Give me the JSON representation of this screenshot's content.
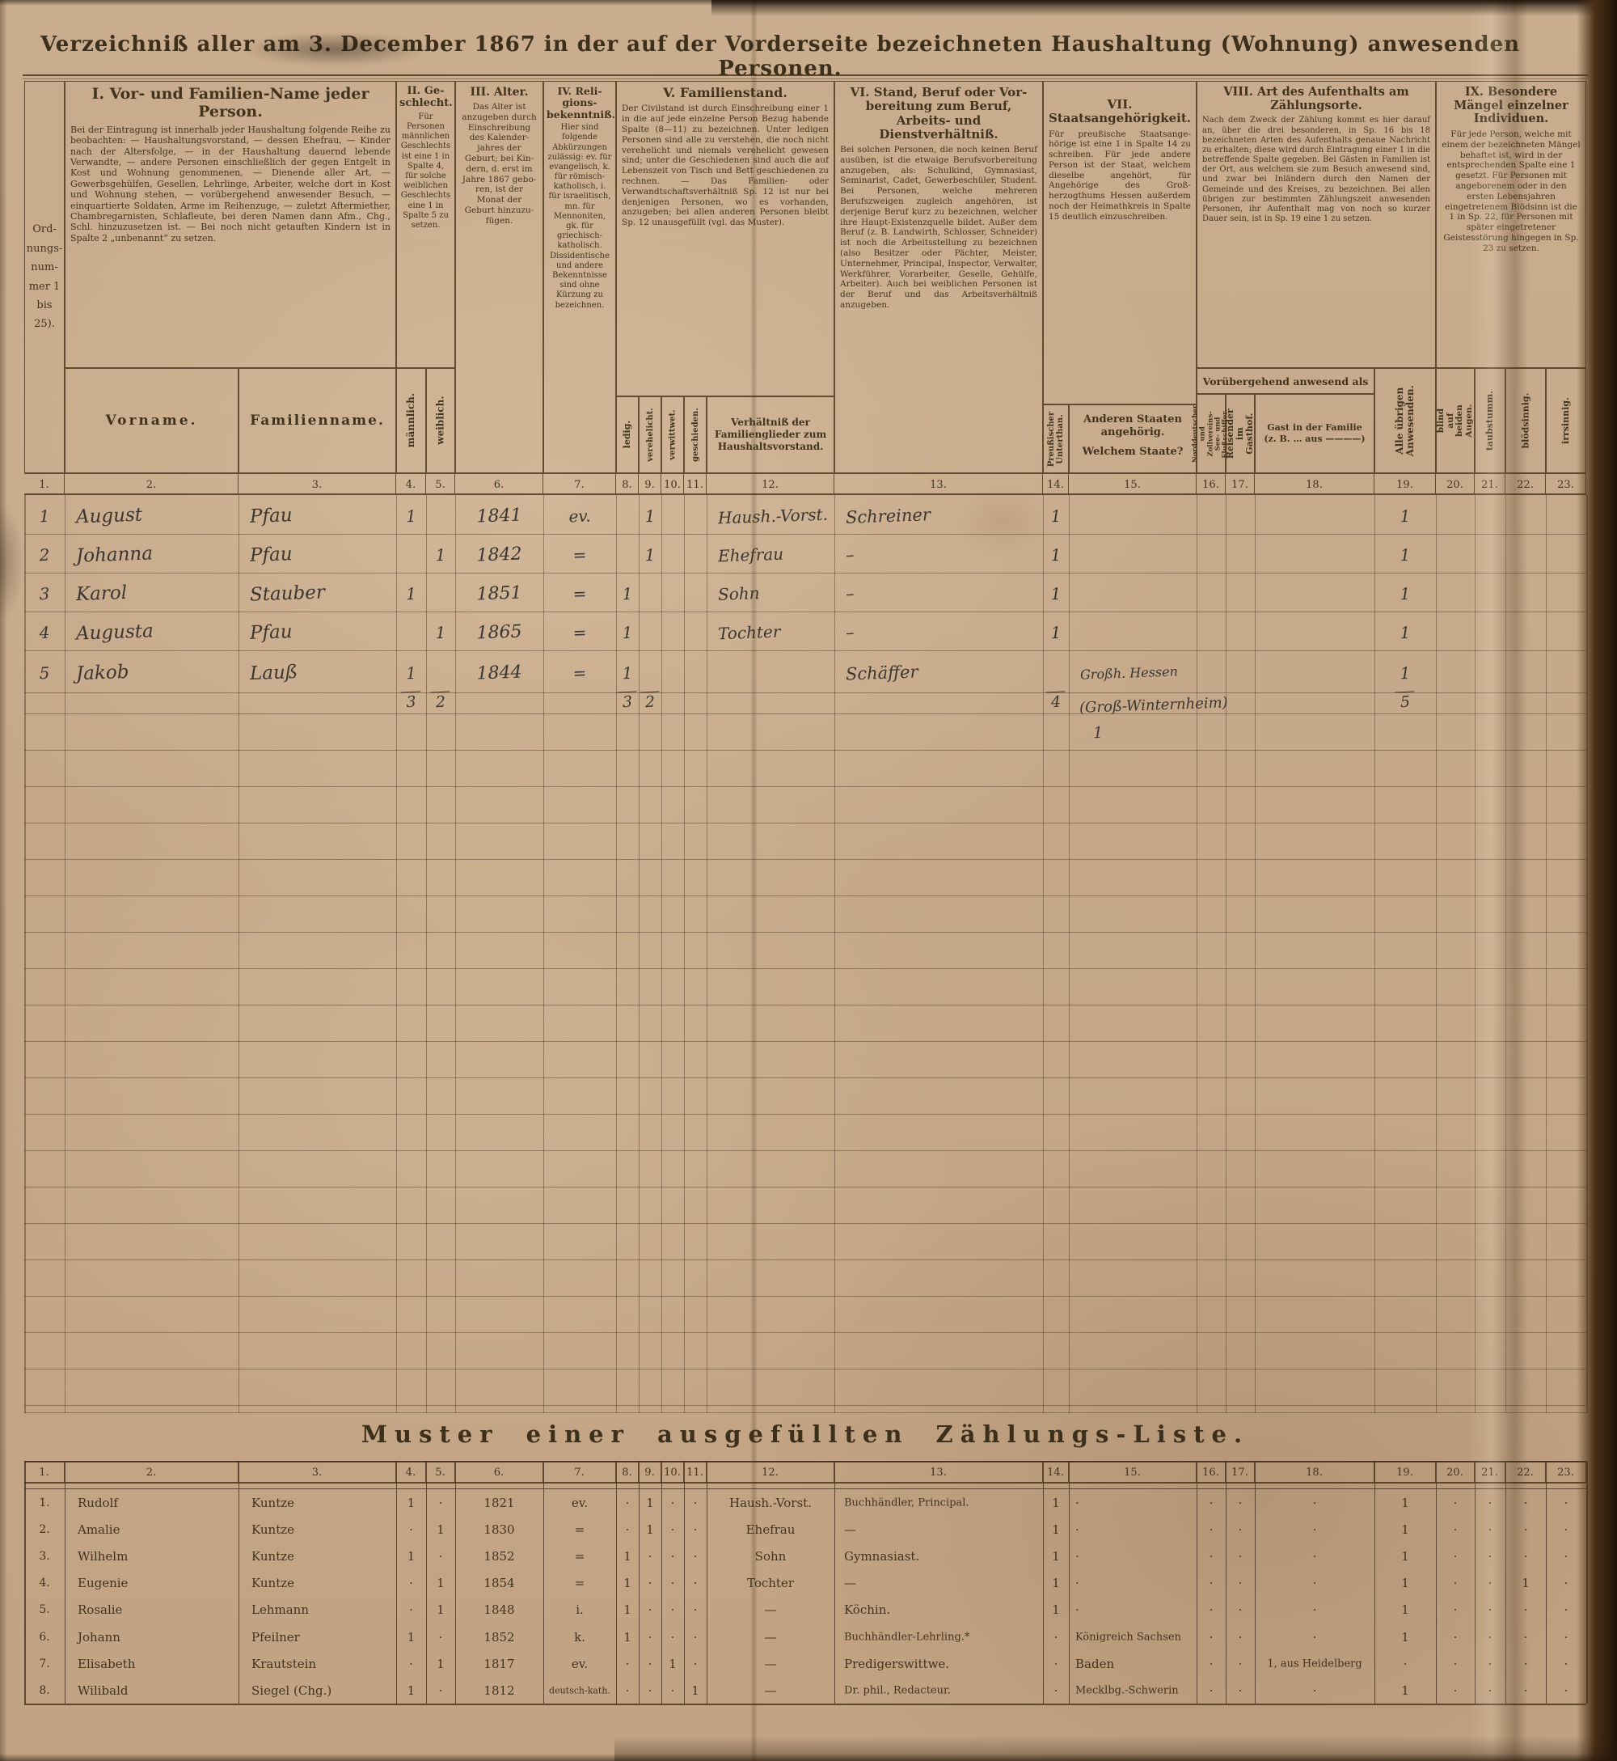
{
  "page": {
    "title": "Verzeichniß aller am 3. December 1867 in der auf der Vorderseite bezeichneten Haushaltung (Wohnung) anwesenden Personen."
  },
  "colors": {
    "paper": "#c9ad8e",
    "ink": "#42331e",
    "handwriting": "#3b3631",
    "book_edge": "#2a1a0c"
  },
  "table": {
    "ord_label": "Ord- nungs- num- mer 1 bis 25).",
    "groups": {
      "g1": {
        "title": "I. Vor- und Familien-Name jeder Person.",
        "text": "Bei der Eintragung ist innerhalb jeder Haushaltung folgende Reihe zu beobachten: — Haushaltungsvorstand, — dessen Ehefrau, — Kinder nach der Altersfolge, — in der Haushaltung dauernd lebende Verwandte, — andere Personen einschließlich der gegen Entgelt in Kost und Wohnung genommenen, — Dienende aller Art, — Gewerbsgehülfen, Gesellen, Lehrlinge, Arbeiter, welche dort in Kost und Wohnung stehen, — vorübergehend anwesender Besuch, — einquartierte Soldaten, Arme im Reihenzuge, — zuletzt Aftermiether, Chambregarnisten, Schlafleute, bei deren Namen dann Afm., Chg., Schl. hinzuzusetzen ist. — Bei noch nicht getauften Kindern ist in Spalte 2 „unbenannt“ zu setzen.",
        "sub_vorname": "Vorname.",
        "sub_familienname": "Familienname."
      },
      "g2": {
        "title": "II. Ge­schlecht.",
        "text": "Für Personen männ­lichen Geschlechts ist eine 1 in Spalte 4, für solche weiblichen Geschlechts eine 1 in Spalte 5 zu setzen.",
        "sub_maennlich": "männlich.",
        "sub_weiblich": "weiblich."
      },
      "g3": {
        "title": "III. Alter.",
        "text": "Das Alter ist anzugeben durch Einschrei­bung des Kalender­jahres der Geburt; bei Kin­dern, d. erst im Jahre 1867 gebo­ren, ist der Monat der Geburt hinzuzu­fügen."
      },
      "g4": {
        "title": "IV. Reli­gions­bekenntniß.",
        "text": "Hier sind folgende Abkürzungen zulässig: ev. für evangelisch, k. für römisch-katholisch, i. für israelitisch, mn. für Mennoniten, gk. für griechisch-katholisch. Dissidentische und andere Bekenntnisse sind ohne Kürzung zu bezeichnen."
      },
      "g5": {
        "title": "V. Familienstand.",
        "text": "Der Civilstand ist durch Einschreibung einer 1 in die auf jede einzelne Person Bezug habende Spalte (8—11) zu bezeichnen. Unter ledigen Personen sind alle zu verstehen, die noch nicht verehelicht und niemals verehelicht gewesen sind; unter die Geschiedenen sind auch die auf Lebenszeit von Tisch und Bett geschiedenen zu rechnen. — Das Familien- oder Verwandtschaftsverhältniß Sp. 12 ist nur bei denjenigen Personen, wo es vorhanden, anzugeben; bei allen anderen Personen bleibt Sp. 12 unausgefüllt (vgl. das Muster).",
        "sub_ledig": "ledig.",
        "sub_verehelicht": "verehelicht.",
        "sub_verwittwet": "verwittwet.",
        "sub_geschieden": "geschieden.",
        "sub_verhaeltnis": "Verhältniß der Familienglieder zum Haushalts­vorstand."
      },
      "g6": {
        "title": "VI. Stand, Beruf oder Vor­bereitung zum Beruf, Arbeits- und Dienstverhältniß.",
        "text": "Bei solchen Personen, die noch keinen Beruf ausüben, ist die etwaige Berufsvorbereitung anzugeben, als: Schulkind, Gymnasiast, Seminarist, Cadet, Gewerbeschüler, Student. Bei Personen, welche mehreren Berufszweigen zugleich angehören, ist derjenige Beruf kurz zu bezeichnen, welcher ihre Haupt-Existenzquelle bildet. Außer dem Beruf (z. B. Landwirth, Schlosser, Schneider) ist noch die Arbeitsstellung zu bezeichnen (also Besitzer oder Pächter, Meister, Unternehmer, Principal, Inspector, Verwalter, Werkführer, Vorarbeiter, Geselle, Gehülfe, Arbeiter). Auch bei weiblichen Personen ist der Beruf und das Arbeitsverhältniß anzugeben."
      },
      "g7": {
        "title": "VII. Staatsangehörigkeit.",
        "text": "Für preußische Staatsange­hörige ist eine 1 in Spalte 14 zu schreiben. Für jede andere Person ist der Staat, welchem dieselbe angehört, für Angehörige des Groß­herzogthums Hessen außerdem noch der Heimathkreis in Spalte 15 deutlich ein­zuschreiben.",
        "sub_preussisch": "Preußischer Unterthan.",
        "sub_andere": "Anderen Staaten angehörig.",
        "sub_welchem": "Welchem Staate?"
      },
      "g8": {
        "title": "VIII. Art des Aufenthalts am Zählungsorte.",
        "text": "Nach dem Zweck der Zählung kommt es hier darauf an, über die drei besonderen, in Sp. 16 bis 18 bezeichneten Arten des Aufenthalts genaue Nachricht zu erhalten; diese wird durch Eintragung einer 1 in die betreffende Spalte gegeben. Bei Gästen in Familien ist der Ort, aus welchem sie zum Besuch anwesend sind, und zwar bei Inländern durch den Namen der Gemeinde und des Kreises, zu bezeichnen. Bei allen übrigen zur bestimmten Zählungszeit anwesenden Personen, ihr Aufenthalt mag von noch so kurzer Dauer sein, ist in Sp. 19 eine 1 zu setzen.",
        "band": "Vorübergehend anwesend als",
        "sub_schiffer": "Norddeutscher und Zollvereins- See- und Flußschiffer.",
        "sub_reisender": "Reisender im Gasthof.",
        "sub_gast": "Gast in der Familie (z. B. … aus ————)",
        "sub_uebrige": "Alle übrigen Anwesenden."
      },
      "g9": {
        "title": "IX. Besondere Mängel einzelner Individuen.",
        "text": "Für jede Person, welche mit einem der bezeichneten Mängel behaftet ist, wird in der entsprechenden Spalte eine 1 gesetzt. Für Personen mit angeborenem oder in den ersten Lebensjahren eingetretenem Blödsinn ist die 1 in Sp. 22, für Personen mit später eingetretener Geistesstörung hingegen in Sp. 23 zu setzen.",
        "sub_blind": "blind auf beiden Augen.",
        "sub_taubstumm": "taubstumm.",
        "sub_bloedsinnig": "blödsinnig.",
        "sub_irrsinnig": "irrsinnig."
      }
    },
    "column_numbers": [
      "1.",
      "2.",
      "3.",
      "4.",
      "5.",
      "6.",
      "7.",
      "8.",
      "9.",
      "10.",
      "11.",
      "12.",
      "13.",
      "14.",
      "15.",
      "16.",
      "17.",
      "18.",
      "19.",
      "20.",
      "21.",
      "22.",
      "23."
    ],
    "entries": [
      {
        "nr": "1",
        "vorname": "August",
        "familienname": "Pfau",
        "m": "1",
        "w": "",
        "jahr": "1841",
        "rel": "ev.",
        "ledig": "",
        "ver": "1",
        "verh": "Haush.-Vorst.",
        "beruf": "Schreiner",
        "pr": "1",
        "staat": "",
        "anw": "1"
      },
      {
        "nr": "2",
        "vorname": "Johanna",
        "familienname": "Pfau",
        "m": "",
        "w": "1",
        "jahr": "1842",
        "rel": "=",
        "ledig": "",
        "ver": "1",
        "verh": "Ehefrau",
        "beruf": "–",
        "pr": "1",
        "staat": "",
        "anw": "1"
      },
      {
        "nr": "3",
        "vorname": "Karol",
        "familienname": "Stauber",
        "m": "1",
        "w": "",
        "jahr": "1851",
        "rel": "=",
        "ledig": "1",
        "ver": "",
        "verh": "Sohn",
        "beruf": "–",
        "pr": "1",
        "staat": "",
        "anw": "1"
      },
      {
        "nr": "4",
        "vorname": "Augusta",
        "familienname": "Pfau",
        "m": "",
        "w": "1",
        "jahr": "1865",
        "rel": "=",
        "ledig": "1",
        "ver": "",
        "verh": "Tochter",
        "beruf": "–",
        "pr": "1",
        "staat": "",
        "anw": "1"
      },
      {
        "nr": "5",
        "vorname": "Jakob",
        "familienname": "Lauß",
        "m": "1",
        "w": "",
        "jahr": "1844",
        "rel": "=",
        "ledig": "1",
        "ver": "",
        "verh": "",
        "beruf": "Schäffer",
        "pr": "",
        "staat": "Großh. Hessen",
        "anw": "1"
      }
    ],
    "totals": {
      "maennlich": "3",
      "weiblich": "2",
      "ledig": "3",
      "verehelicht": "2",
      "preussisch": "4",
      "andere_note": "(Groß-Winternheim)",
      "andere_count": "1",
      "anwesend": "5"
    }
  },
  "muster": {
    "title": "Muster einer ausgefüllten Zählungs-Liste.",
    "rows": [
      [
        "1.",
        "Rudolf",
        "Kuntze",
        "1",
        "·",
        "1821",
        "ev.",
        "·",
        "1",
        "·",
        "·",
        "Haush.-Vorst.",
        "Buchhändler, Principal.",
        "1",
        "·",
        "·",
        "·",
        "·",
        "1",
        "·",
        "·",
        "·",
        "·"
      ],
      [
        "2.",
        "Amalie",
        "Kuntze",
        "·",
        "1",
        "1830",
        "=",
        "·",
        "1",
        "·",
        "·",
        "Ehefrau",
        "—",
        "1",
        "·",
        "·",
        "·",
        "·",
        "1",
        "·",
        "·",
        "·",
        "·"
      ],
      [
        "3.",
        "Wilhelm",
        "Kuntze",
        "1",
        "·",
        "1852",
        "=",
        "1",
        "·",
        "·",
        "·",
        "Sohn",
        "Gymnasiast.",
        "1",
        "·",
        "·",
        "·",
        "·",
        "1",
        "·",
        "·",
        "·",
        "·"
      ],
      [
        "4.",
        "Eugenie",
        "Kuntze",
        "·",
        "1",
        "1854",
        "=",
        "1",
        "·",
        "·",
        "·",
        "Tochter",
        "—",
        "1",
        "·",
        "·",
        "·",
        "·",
        "1",
        "·",
        "·",
        "1",
        "·"
      ],
      [
        "5.",
        "Rosalie",
        "Lehmann",
        "·",
        "1",
        "1848",
        "i.",
        "1",
        "·",
        "·",
        "·",
        "—",
        "Köchin.",
        "1",
        "·",
        "·",
        "·",
        "·",
        "1",
        "·",
        "·",
        "·",
        "·"
      ],
      [
        "6.",
        "Johann",
        "Pfeilner",
        "1",
        "·",
        "1852",
        "k.",
        "1",
        "·",
        "·",
        "·",
        "—",
        "Buchhändler-Lehrling.*",
        "·",
        "Königreich Sachsen",
        "·",
        "·",
        "·",
        "1",
        "·",
        "·",
        "·",
        "·"
      ],
      [
        "7.",
        "Elisabeth",
        "Krautstein",
        "·",
        "1",
        "1817",
        "ev.",
        "·",
        "·",
        "1",
        "·",
        "—",
        "Predigerswittwe.",
        "·",
        "Baden",
        "·",
        "·",
        "1, aus Heidelberg",
        "·",
        "·",
        "·",
        "·",
        "·"
      ],
      [
        "8.",
        "Wilibald",
        "Siegel (Chg.)",
        "1",
        "·",
        "1812",
        "deutsch-kath.",
        "·",
        "·",
        "·",
        "1",
        "—",
        "Dr. phil., Redacteur.",
        "·",
        "Mecklbg.-Schwerin",
        "·",
        "·",
        "·",
        "1",
        "·",
        "·",
        "·",
        "·"
      ]
    ]
  }
}
